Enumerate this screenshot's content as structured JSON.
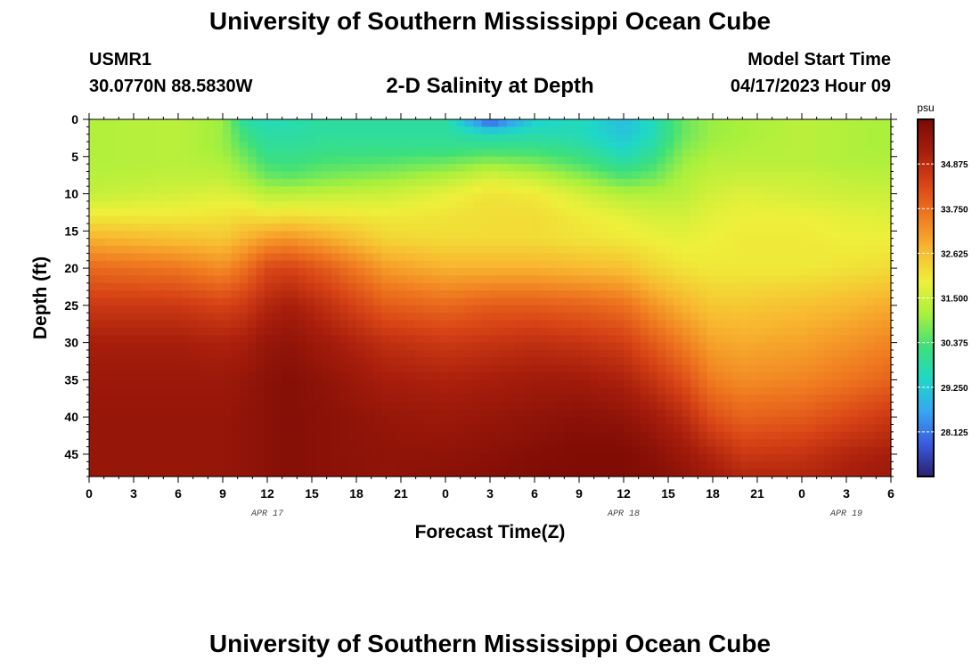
{
  "header": {
    "title": "University of Southern Mississippi Ocean Cube",
    "station_id": "USMR1",
    "coords": "30.0770N  88.5830W",
    "chart_title": "2-D Salinity at Depth",
    "start_label": "Model Start Time",
    "start_time": "04/17/2023 Hour 09"
  },
  "footer": {
    "title": "University of Southern Mississippi Ocean Cube"
  },
  "chart_data": {
    "type": "heatmap",
    "xlabel": "Forecast Time(Z)",
    "ylabel": "Depth (ft)",
    "x_ticks": [
      "0",
      "3",
      "6",
      "9",
      "12",
      "15",
      "18",
      "21",
      "0",
      "3",
      "6",
      "9",
      "12",
      "15",
      "18",
      "21",
      "0",
      "3",
      "6"
    ],
    "x_range_hours": [
      0,
      54
    ],
    "date_labels": [
      {
        "label": "APR 17",
        "hour": 12
      },
      {
        "label": "APR 18",
        "hour": 36
      },
      {
        "label": "APR 19",
        "hour": 51
      }
    ],
    "y_ticks": [
      0,
      5,
      10,
      15,
      20,
      25,
      30,
      35,
      40,
      45
    ],
    "ylim": [
      0,
      48
    ],
    "y_inverted": true,
    "colorbar": {
      "unit": "psu",
      "range": [
        27,
        36
      ],
      "ticks": [
        "34.875",
        "33.750",
        "32.625",
        "31.500",
        "30.375",
        "29.250",
        "28.125"
      ],
      "colors": [
        "#2a1f6e",
        "#3a5be0",
        "#36a6f2",
        "#1fd8c6",
        "#3ee07a",
        "#a8f03c",
        "#eef03a",
        "#f8b830",
        "#f07a20",
        "#d84416",
        "#a81e0c",
        "#7a0a04"
      ]
    },
    "depths_ft": [
      0,
      2,
      4,
      6,
      8,
      10,
      13,
      16,
      20,
      25,
      30,
      35,
      40,
      45,
      48
    ],
    "hours": [
      0,
      6,
      9,
      10.5,
      12,
      13.5,
      16,
      20,
      24,
      27,
      30,
      33,
      36,
      38,
      40,
      42,
      44,
      48,
      51,
      54
    ],
    "values": [
      [
        31.2,
        31.3,
        31.0,
        29.8,
        29.6,
        29.7,
        29.9,
        29.9,
        29.9,
        27.6,
        29.3,
        29.6,
        29.0,
        29.6,
        30.6,
        31.0,
        31.1,
        31.3,
        31.2,
        31.1
      ],
      [
        31.2,
        31.3,
        31.0,
        30.2,
        29.8,
        29.8,
        29.9,
        29.9,
        29.9,
        29.6,
        29.7,
        29.6,
        29.1,
        29.6,
        30.6,
        31.0,
        31.1,
        31.3,
        31.2,
        31.1
      ],
      [
        31.2,
        31.3,
        31.0,
        30.5,
        30.0,
        30.0,
        30.1,
        30.1,
        30.1,
        30.2,
        30.2,
        30.0,
        29.4,
        29.9,
        30.8,
        31.1,
        31.2,
        31.3,
        31.2,
        31.1
      ],
      [
        31.2,
        31.3,
        31.2,
        30.8,
        30.3,
        30.2,
        30.4,
        30.5,
        30.7,
        31.0,
        30.8,
        30.4,
        29.9,
        30.3,
        31.0,
        31.3,
        31.3,
        31.3,
        31.2,
        31.2
      ],
      [
        31.3,
        31.4,
        31.4,
        31.1,
        30.7,
        30.6,
        30.8,
        31.0,
        31.3,
        31.7,
        31.5,
        31.0,
        30.5,
        30.7,
        31.2,
        31.4,
        31.5,
        31.5,
        31.4,
        31.3
      ],
      [
        31.4,
        31.6,
        31.7,
        31.6,
        31.3,
        31.3,
        31.4,
        31.5,
        31.8,
        32.1,
        32.0,
        31.6,
        31.2,
        31.2,
        31.3,
        31.6,
        31.7,
        31.6,
        31.5,
        31.5
      ],
      [
        32.0,
        32.0,
        32.1,
        32.2,
        32.1,
        32.2,
        32.1,
        32.0,
        32.1,
        32.2,
        32.2,
        32.0,
        31.8,
        31.6,
        31.6,
        31.8,
        31.9,
        31.9,
        31.8,
        31.7
      ],
      [
        32.8,
        32.6,
        32.5,
        32.8,
        33.1,
        33.2,
        32.9,
        32.3,
        32.2,
        32.2,
        32.2,
        32.1,
        32.0,
        31.9,
        31.8,
        31.9,
        32.0,
        32.0,
        31.9,
        31.9
      ],
      [
        33.8,
        33.6,
        33.3,
        33.7,
        34.3,
        34.4,
        34.0,
        33.1,
        32.8,
        32.8,
        32.8,
        32.7,
        32.6,
        32.3,
        32.1,
        32.0,
        32.0,
        32.0,
        32.1,
        32.2
      ],
      [
        34.6,
        34.6,
        34.4,
        34.6,
        35.0,
        35.2,
        34.8,
        34.0,
        33.8,
        34.0,
        34.0,
        33.9,
        33.7,
        33.2,
        32.8,
        32.5,
        32.5,
        32.6,
        32.7,
        32.9
      ],
      [
        35.2,
        35.2,
        35.1,
        35.2,
        35.5,
        35.6,
        35.3,
        34.8,
        34.6,
        34.7,
        34.8,
        34.7,
        34.5,
        34.0,
        33.5,
        33.0,
        32.9,
        33.0,
        33.2,
        33.4
      ],
      [
        35.4,
        35.4,
        35.4,
        35.5,
        35.7,
        35.8,
        35.6,
        35.2,
        35.1,
        35.2,
        35.3,
        35.3,
        35.1,
        34.7,
        34.2,
        33.5,
        33.3,
        33.4,
        33.6,
        33.9
      ],
      [
        35.5,
        35.5,
        35.5,
        35.6,
        35.7,
        35.8,
        35.7,
        35.5,
        35.4,
        35.5,
        35.6,
        35.7,
        35.6,
        35.3,
        34.9,
        34.2,
        33.9,
        34.0,
        34.3,
        34.6
      ],
      [
        35.5,
        35.5,
        35.5,
        35.6,
        35.7,
        35.8,
        35.7,
        35.6,
        35.6,
        35.7,
        35.8,
        35.9,
        35.9,
        35.7,
        35.4,
        35.0,
        34.6,
        34.7,
        35.0,
        35.2
      ],
      [
        35.5,
        35.5,
        35.5,
        35.6,
        35.7,
        35.8,
        35.7,
        35.6,
        35.7,
        35.8,
        35.9,
        35.9,
        35.9,
        35.8,
        35.6,
        35.3,
        35.0,
        35.0,
        35.2,
        35.4
      ]
    ]
  }
}
